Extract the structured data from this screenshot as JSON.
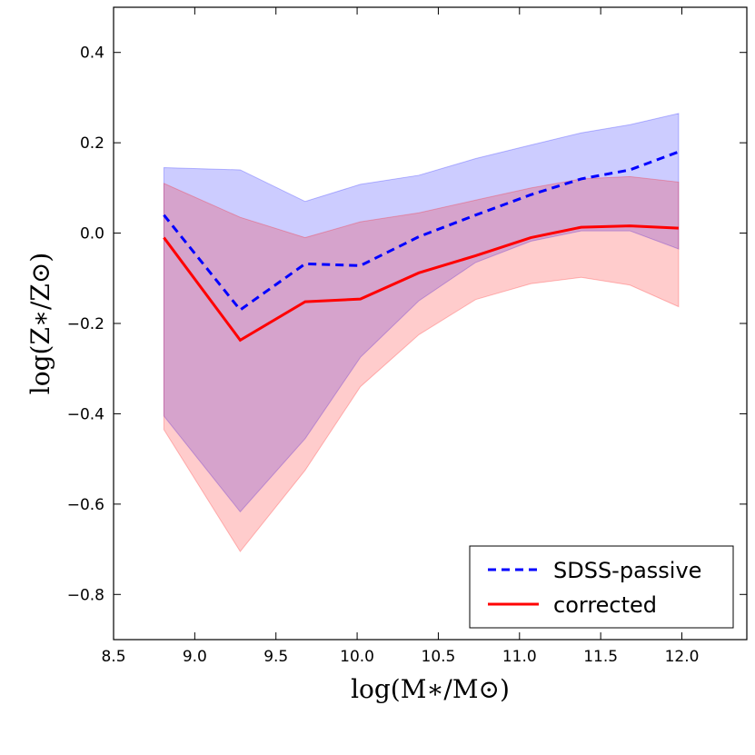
{
  "chart_data": {
    "type": "line",
    "title": "",
    "xlabel": "log(M∗/M⊙)",
    "ylabel": "log(Z∗/Z⊙)",
    "xlim": [
      8.5,
      12.4
    ],
    "ylim": [
      -0.9,
      0.5
    ],
    "xticks": [
      8.5,
      9.0,
      9.5,
      10.0,
      10.5,
      11.0,
      11.5,
      12.0
    ],
    "xtick_labels": [
      "8.5",
      "9.0",
      "9.5",
      "10.0",
      "10.5",
      "11.0",
      "11.5",
      "12.0"
    ],
    "yticks": [
      -0.8,
      -0.6,
      -0.4,
      -0.2,
      0.0,
      0.2,
      0.4
    ],
    "ytick_labels": [
      "−0.8",
      "−0.6",
      "−0.4",
      "−0.2",
      "0.0",
      "0.2",
      "0.4"
    ],
    "grid": false,
    "legend_position": "bottom-right",
    "x": [
      8.81,
      9.28,
      9.68,
      10.02,
      10.38,
      10.73,
      11.07,
      11.38,
      11.68,
      11.98
    ],
    "series": [
      {
        "name": "SDSS-passive",
        "style": "dashed",
        "color": "#0000ff",
        "band_color": "#0000ff",
        "values": [
          0.04,
          -0.17,
          -0.068,
          -0.072,
          -0.008,
          0.04,
          0.085,
          0.12,
          0.14,
          0.18
        ],
        "upper": [
          0.145,
          0.14,
          0.07,
          0.108,
          0.128,
          0.165,
          0.195,
          0.222,
          0.24,
          0.265
        ],
        "lower": [
          -0.405,
          -0.617,
          -0.455,
          -0.275,
          -0.15,
          -0.065,
          -0.018,
          0.005,
          0.005,
          -0.035
        ]
      },
      {
        "name": "corrected",
        "style": "solid",
        "color": "#ff0000",
        "band_color": "#ff0000",
        "values": [
          -0.01,
          -0.237,
          -0.152,
          -0.146,
          -0.088,
          -0.05,
          -0.01,
          0.013,
          0.016,
          0.011
        ],
        "upper": [
          0.11,
          0.035,
          -0.01,
          0.025,
          0.045,
          0.073,
          0.1,
          0.12,
          0.125,
          0.113
        ],
        "lower": [
          -0.435,
          -0.705,
          -0.525,
          -0.34,
          -0.225,
          -0.147,
          -0.112,
          -0.098,
          -0.115,
          -0.163
        ]
      }
    ]
  }
}
